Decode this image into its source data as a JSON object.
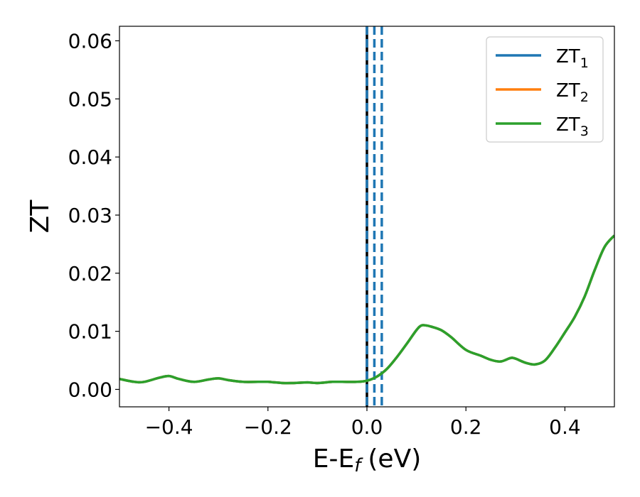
{
  "chart_data": {
    "type": "line",
    "xlabel": "E-E",
    "xlabel_sub": "f",
    "xlabel_unit": "(eV)",
    "ylabel": "ZT",
    "xlim": [
      -0.5,
      0.5
    ],
    "ylim": [
      -0.003,
      0.0625
    ],
    "x_ticks": [
      -0.4,
      -0.2,
      0.0,
      0.2,
      0.4
    ],
    "x_tick_labels": [
      "−0.4",
      "−0.2",
      "0.0",
      "0.2",
      "0.4"
    ],
    "y_ticks": [
      0.0,
      0.01,
      0.02,
      0.03,
      0.04,
      0.05,
      0.06
    ],
    "y_tick_labels": [
      "0.00",
      "0.01",
      "0.02",
      "0.03",
      "0.04",
      "0.05",
      "0.06"
    ],
    "grid": false,
    "legend_position": "top-right",
    "colors": {
      "zt1": "#1f77b4",
      "zt2": "#ff7f0e",
      "zt3": "#2ca02c",
      "fermi": "#000000"
    },
    "vertical_lines": [
      {
        "x": 0.0,
        "color": "#000000",
        "style": "solid"
      },
      {
        "x": 0.0,
        "color": "#1f77b4",
        "style": "dashed"
      },
      {
        "x": 0.015,
        "color": "#1f77b4",
        "style": "dashed"
      },
      {
        "x": 0.03,
        "color": "#1f77b4",
        "style": "dashed"
      }
    ],
    "x": [
      -0.5,
      -0.47,
      -0.45,
      -0.42,
      -0.4,
      -0.38,
      -0.35,
      -0.32,
      -0.3,
      -0.28,
      -0.25,
      -0.22,
      -0.2,
      -0.17,
      -0.15,
      -0.12,
      -0.1,
      -0.07,
      -0.05,
      -0.02,
      0.0,
      0.02,
      0.04,
      0.06,
      0.08,
      0.1,
      0.11,
      0.12,
      0.13,
      0.15,
      0.17,
      0.2,
      0.23,
      0.25,
      0.27,
      0.29,
      0.3,
      0.32,
      0.34,
      0.36,
      0.38,
      0.4,
      0.42,
      0.44,
      0.46,
      0.48,
      0.5
    ],
    "series": [
      {
        "name": "ZT",
        "name_sub": "1",
        "color": "#1f77b4",
        "values": [
          0.0018,
          0.0013,
          0.0013,
          0.002,
          0.0023,
          0.0018,
          0.0013,
          0.0017,
          0.0019,
          0.0016,
          0.0013,
          0.0013,
          0.0013,
          0.0011,
          0.0011,
          0.0012,
          0.0011,
          0.0013,
          0.0013,
          0.0013,
          0.0015,
          0.0022,
          0.0035,
          0.0055,
          0.0078,
          0.0102,
          0.011,
          0.011,
          0.0108,
          0.0102,
          0.009,
          0.0068,
          0.0058,
          0.0051,
          0.0048,
          0.0054,
          0.0053,
          0.0046,
          0.0043,
          0.005,
          0.0072,
          0.0098,
          0.0125,
          0.016,
          0.0205,
          0.0245,
          0.0265
        ]
      },
      {
        "name": "ZT",
        "name_sub": "2",
        "color": "#ff7f0e",
        "values": [
          0.0018,
          0.0013,
          0.0013,
          0.002,
          0.0023,
          0.0018,
          0.0013,
          0.0017,
          0.0019,
          0.0016,
          0.0013,
          0.0013,
          0.0013,
          0.0011,
          0.0011,
          0.0012,
          0.0011,
          0.0013,
          0.0013,
          0.0013,
          0.0015,
          0.0022,
          0.0035,
          0.0055,
          0.0078,
          0.0102,
          0.011,
          0.011,
          0.0108,
          0.0102,
          0.009,
          0.0068,
          0.0058,
          0.0051,
          0.0048,
          0.0054,
          0.0053,
          0.0046,
          0.0043,
          0.005,
          0.0072,
          0.0098,
          0.0125,
          0.016,
          0.0205,
          0.0245,
          0.0265
        ]
      },
      {
        "name": "ZT",
        "name_sub": "3",
        "color": "#2ca02c",
        "values": [
          0.0018,
          0.0013,
          0.0013,
          0.002,
          0.0023,
          0.0018,
          0.0013,
          0.0017,
          0.0019,
          0.0016,
          0.0013,
          0.0013,
          0.0013,
          0.0011,
          0.0011,
          0.0012,
          0.0011,
          0.0013,
          0.0013,
          0.0013,
          0.0015,
          0.0022,
          0.0035,
          0.0055,
          0.0078,
          0.0102,
          0.011,
          0.011,
          0.0108,
          0.0102,
          0.009,
          0.0068,
          0.0058,
          0.0051,
          0.0048,
          0.0054,
          0.0053,
          0.0046,
          0.0043,
          0.005,
          0.0072,
          0.0098,
          0.0125,
          0.016,
          0.0205,
          0.0245,
          0.0265
        ]
      }
    ]
  }
}
